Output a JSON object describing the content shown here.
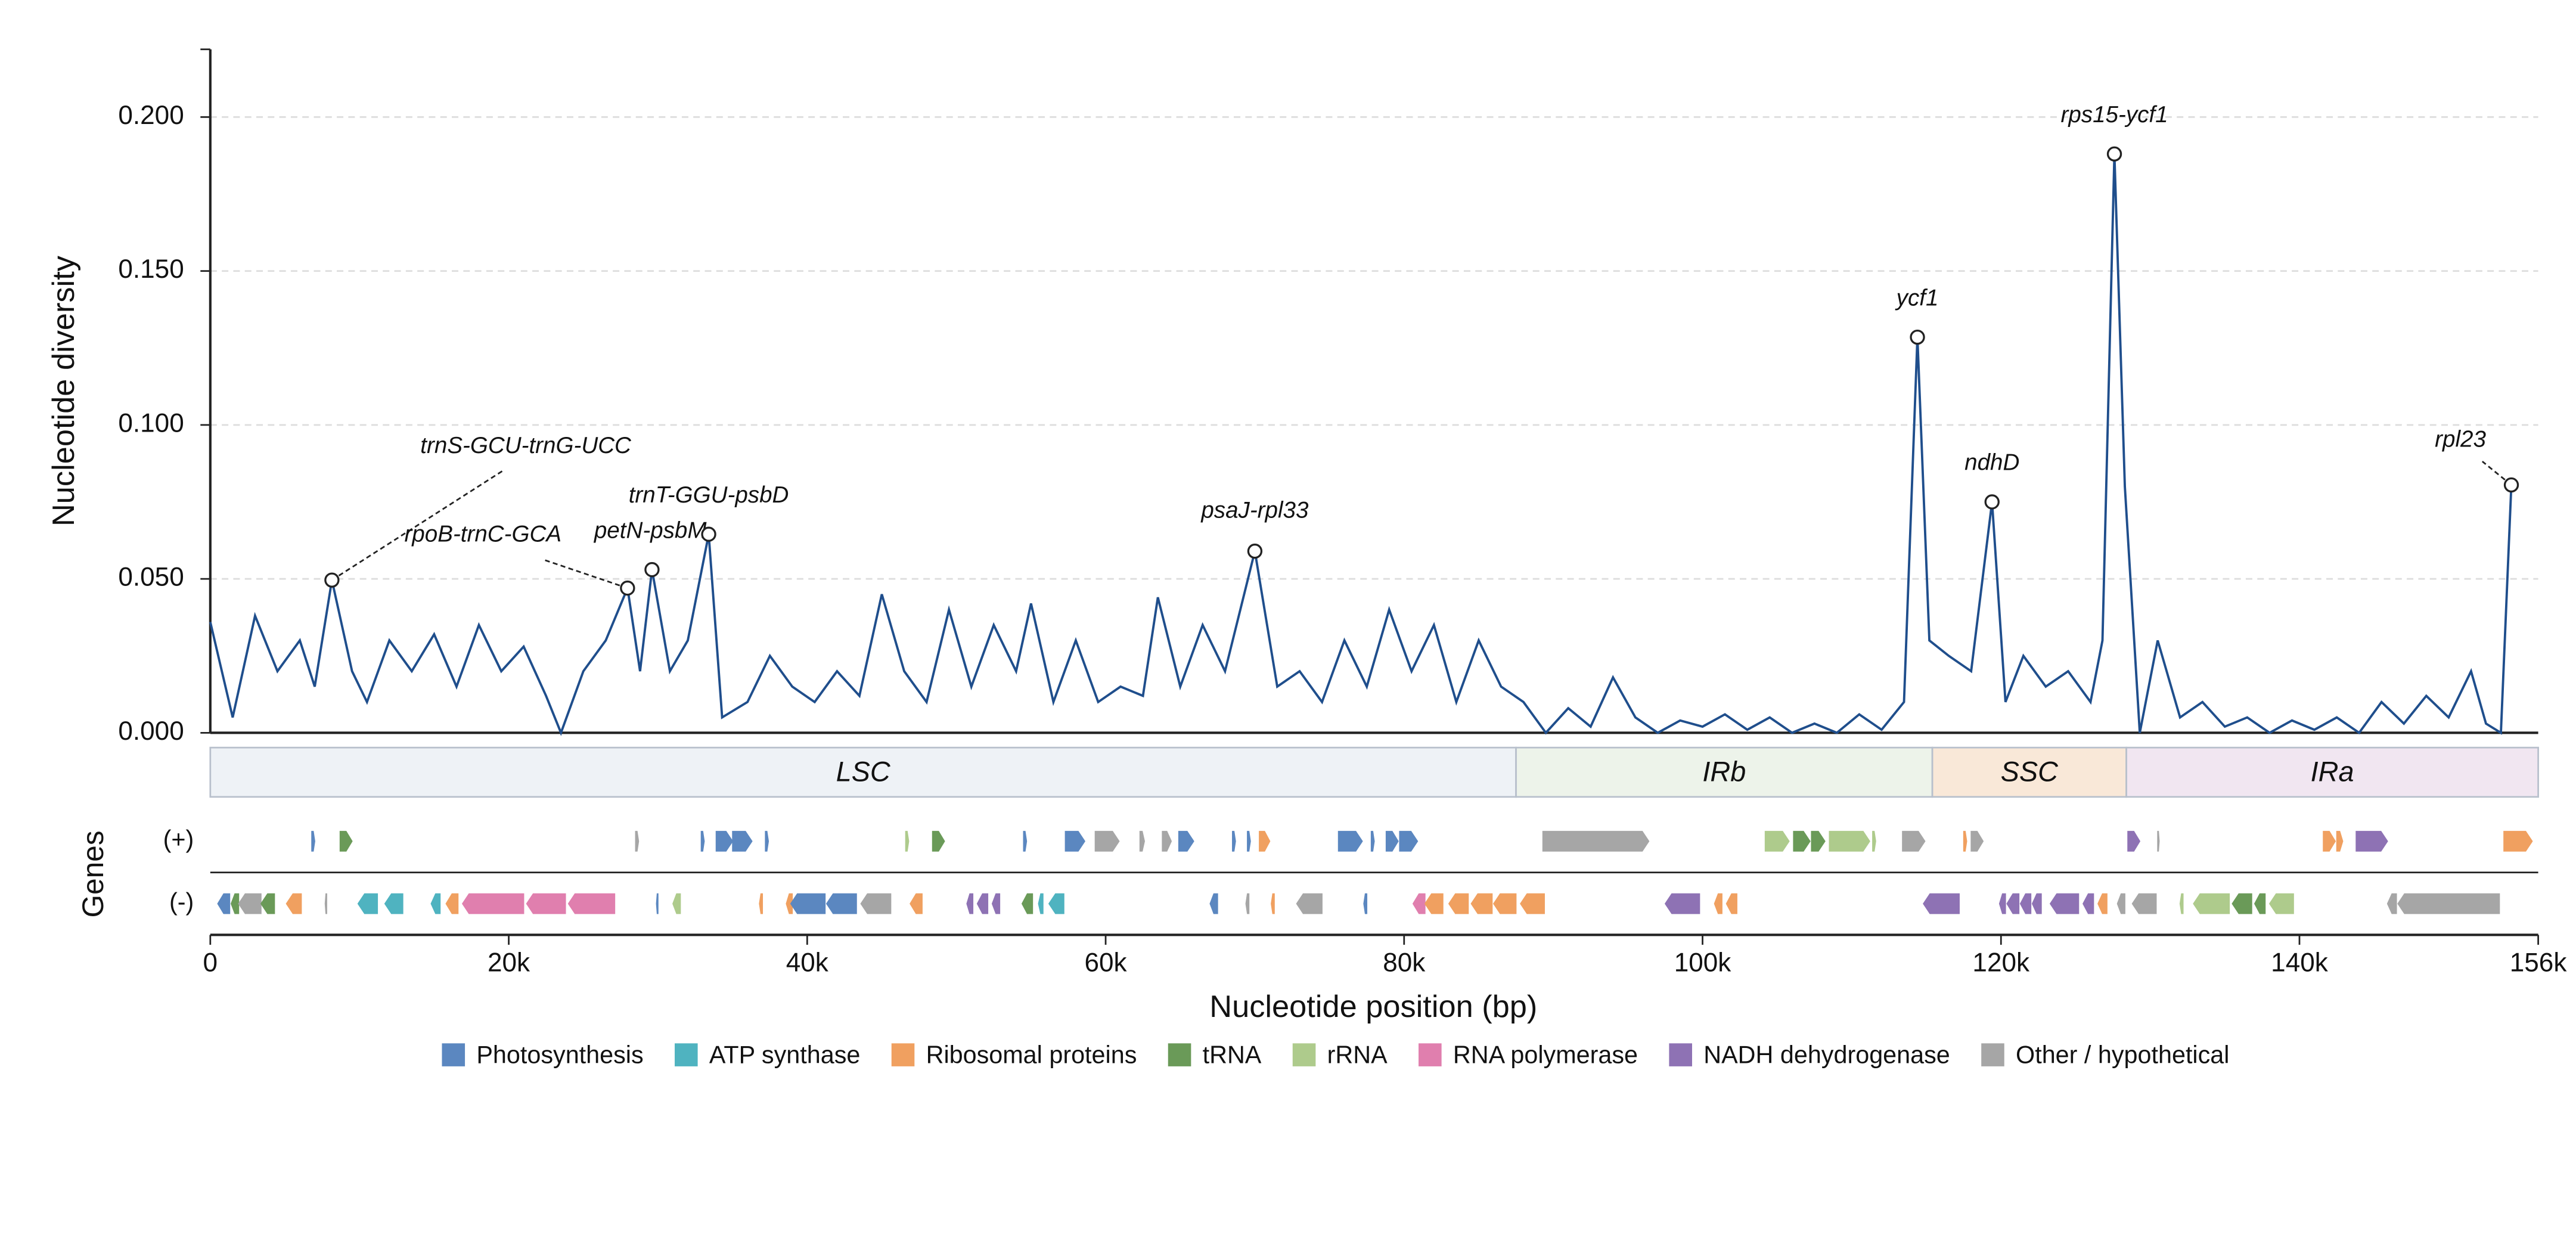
{
  "chart_data": {
    "type": "line",
    "ylabel": "Nucleotide diversity",
    "xlabel": "Nucleotide position (bp)",
    "genes_label": "Genes",
    "line_color": "#1f4e8c",
    "grid": true,
    "xlim": [
      0,
      156000
    ],
    "ylim": [
      0,
      0.222
    ],
    "yticks": [
      {
        "value": 0,
        "label": "0.000"
      },
      {
        "value": 0.05,
        "label": "0.050"
      },
      {
        "value": 0.1,
        "label": "0.100"
      },
      {
        "value": 0.15,
        "label": "0.150"
      },
      {
        "value": 0.2,
        "label": "0.200"
      }
    ],
    "xticks": [
      0,
      {
        "value": 20000,
        "label": "20k"
      },
      {
        "value": 40000,
        "label": "40k"
      },
      {
        "value": 60000,
        "label": "60k"
      },
      {
        "value": 80000,
        "label": "80k"
      },
      {
        "value": 100000,
        "label": "100k"
      },
      {
        "value": 120000,
        "label": "120k"
      },
      {
        "value": 140000,
        "label": "140k"
      },
      {
        "value": 156000,
        "label": "156k"
      }
    ],
    "x": [
      0,
      1500,
      3000,
      4500,
      6000,
      7000,
      8150,
      9500,
      10500,
      12000,
      13500,
      15000,
      16500,
      18000,
      19500,
      21000,
      22500,
      23500,
      25000,
      26500,
      27960,
      28800,
      29600,
      30800,
      32000,
      33400,
      34300,
      36000,
      37500,
      39000,
      40500,
      42000,
      43500,
      45000,
      46500,
      48000,
      49500,
      51000,
      52500,
      54000,
      55000,
      56500,
      58000,
      59500,
      61000,
      62500,
      63500,
      65000,
      66500,
      68000,
      70000,
      71500,
      73000,
      74500,
      76000,
      77500,
      79000,
      80500,
      82000,
      83500,
      85000,
      86500,
      88000,
      89500,
      91000,
      92500,
      94000,
      95500,
      97000,
      98500,
      100000,
      101500,
      103000,
      104500,
      106000,
      107500,
      109000,
      110500,
      112000,
      113500,
      114400,
      115200,
      116500,
      118000,
      119400,
      120300,
      121500,
      123000,
      124500,
      126000,
      126800,
      127600,
      128300,
      129300,
      130500,
      132000,
      133500,
      135000,
      136500,
      138000,
      139500,
      141000,
      142500,
      144000,
      145500,
      147000,
      148500,
      150000,
      151500,
      152500,
      153500,
      154200
    ],
    "values": [
      0.036,
      0.005,
      0.038,
      0.02,
      0.03,
      0.015,
      0.0496,
      0.02,
      0.01,
      0.03,
      0.02,
      0.032,
      0.015,
      0.035,
      0.02,
      0.028,
      0.012,
      0.0,
      0.02,
      0.03,
      0.047,
      0.02,
      0.053,
      0.02,
      0.03,
      0.0645,
      0.005,
      0.01,
      0.025,
      0.015,
      0.01,
      0.02,
      0.012,
      0.045,
      0.02,
      0.01,
      0.04,
      0.015,
      0.035,
      0.02,
      0.042,
      0.01,
      0.03,
      0.01,
      0.015,
      0.012,
      0.044,
      0.015,
      0.035,
      0.02,
      0.059,
      0.015,
      0.02,
      0.01,
      0.03,
      0.015,
      0.04,
      0.02,
      0.035,
      0.01,
      0.03,
      0.015,
      0.01,
      0.0,
      0.008,
      0.002,
      0.018,
      0.005,
      0.0,
      0.004,
      0.002,
      0.006,
      0.001,
      0.005,
      0.0,
      0.003,
      0.0,
      0.006,
      0.001,
      0.01,
      0.1285,
      0.03,
      0.025,
      0.02,
      0.075,
      0.01,
      0.025,
      0.015,
      0.02,
      0.01,
      0.03,
      0.188,
      0.08,
      0.0,
      0.03,
      0.005,
      0.01,
      0.002,
      0.005,
      0.0,
      0.004,
      0.001,
      0.005,
      0.0,
      0.01,
      0.003,
      0.012,
      0.005,
      0.02,
      0.003,
      0.0,
      0.0805
    ],
    "annotations": [
      {
        "label": "trnS-GCU-trnG-UCC",
        "x": 8150,
        "y": 0.0496
      },
      {
        "label": "rpoB-trnC-GCA",
        "x": 27960,
        "y": 0.047
      },
      {
        "label": "petN-psbM",
        "x": 29600,
        "y": 0.053
      },
      {
        "label": "trnT-GGU-psbD",
        "x": 33400,
        "y": 0.0645
      },
      {
        "label": "psaJ-rpl33",
        "x": 70000,
        "y": 0.059
      },
      {
        "label": "ycf1",
        "x": 114400,
        "y": 0.1285
      },
      {
        "label": "ndhD",
        "x": 119400,
        "y": 0.075
      },
      {
        "label": "rps15-ycf1",
        "x": 127600,
        "y": 0.188
      },
      {
        "label": "rpl23",
        "x": 154200,
        "y": 0.0805
      }
    ],
    "regions": [
      {
        "label": "LSC",
        "start": 0,
        "end": 87500,
        "color": "#eef2f6"
      },
      {
        "label": "IRb",
        "start": 87500,
        "end": 115400,
        "color": "#edf3ea"
      },
      {
        "label": "SSC",
        "start": 115400,
        "end": 128400,
        "color": "#f9e8d8"
      },
      {
        "label": "IRa",
        "start": 128400,
        "end": 156000,
        "color": "#f1e6f1"
      }
    ],
    "track_labels": [
      "(+)",
      "(-)"
    ],
    "categories": [
      {
        "name": "Photosynthesis",
        "color": "#5b87c0"
      },
      {
        "name": "ATP synthase",
        "color": "#4fb3c0"
      },
      {
        "name": "Ribosomal proteins",
        "color": "#f0a060"
      },
      {
        "name": "tRNA",
        "color": "#6a9a58"
      },
      {
        "name": "rRNA",
        "color": "#aecb8c"
      },
      {
        "name": "RNA polymerase",
        "color": "#e07fae"
      },
      {
        "name": "NADH dehydrogenase",
        "color": "#8e72b4"
      },
      {
        "name": "Other / hypothetical",
        "color": "#a6a6a6"
      }
    ],
    "genes": [
      [
        6800,
        7000,
        0,
        0
      ],
      [
        8700,
        9500,
        0,
        3
      ],
      [
        28500,
        28700,
        0,
        7
      ],
      [
        32900,
        33100,
        0,
        0
      ],
      [
        33900,
        35000,
        0,
        0
      ],
      [
        35000,
        36300,
        0,
        0
      ],
      [
        37200,
        37400,
        0,
        0
      ],
      [
        46600,
        46800,
        0,
        4
      ],
      [
        48400,
        49200,
        0,
        3
      ],
      [
        54500,
        54700,
        0,
        0
      ],
      [
        57300,
        58600,
        0,
        0
      ],
      [
        59300,
        60900,
        0,
        7
      ],
      [
        62300,
        62600,
        0,
        7
      ],
      [
        63800,
        64400,
        0,
        7
      ],
      [
        64900,
        65900,
        0,
        0
      ],
      [
        68500,
        68700,
        0,
        0
      ],
      [
        69500,
        69700,
        0,
        0
      ],
      [
        70300,
        71000,
        0,
        2
      ],
      [
        75600,
        77200,
        0,
        0
      ],
      [
        77800,
        78000,
        0,
        0
      ],
      [
        78800,
        79600,
        0,
        0
      ],
      [
        79700,
        80900,
        0,
        0
      ],
      [
        89300,
        96400,
        0,
        7
      ],
      [
        104200,
        105800,
        0,
        4
      ],
      [
        106100,
        107200,
        0,
        3
      ],
      [
        107300,
        108200,
        0,
        3
      ],
      [
        108500,
        111200,
        0,
        4
      ],
      [
        111400,
        111600,
        0,
        4
      ],
      [
        113400,
        114900,
        0,
        7
      ],
      [
        117500,
        117700,
        0,
        2
      ],
      [
        118000,
        118800,
        0,
        7
      ],
      [
        128500,
        129300,
        0,
        6
      ],
      [
        130500,
        130600,
        0,
        7
      ],
      [
        141600,
        142400,
        0,
        2
      ],
      [
        142500,
        142900,
        0,
        2
      ],
      [
        143800,
        145900,
        0,
        6
      ],
      [
        153700,
        155600,
        0,
        2
      ],
      [
        500,
        1300,
        1,
        0
      ],
      [
        1400,
        1900,
        1,
        3
      ],
      [
        1900,
        3400,
        1,
        7
      ],
      [
        3400,
        4300,
        1,
        3
      ],
      [
        5100,
        6100,
        1,
        2
      ],
      [
        7700,
        7800,
        1,
        7
      ],
      [
        9900,
        11200,
        1,
        1
      ],
      [
        11700,
        12900,
        1,
        1
      ],
      [
        14800,
        15400,
        1,
        1
      ],
      [
        15800,
        16600,
        1,
        2
      ],
      [
        16900,
        21000,
        1,
        5
      ],
      [
        21200,
        23800,
        1,
        5
      ],
      [
        24000,
        27100,
        1,
        5
      ],
      [
        29900,
        30000,
        1,
        0
      ],
      [
        31000,
        31500,
        1,
        4
      ],
      [
        36800,
        37000,
        1,
        2
      ],
      [
        38600,
        39000,
        1,
        2
      ],
      [
        38900,
        41200,
        1,
        0
      ],
      [
        41300,
        43300,
        1,
        0
      ],
      [
        43600,
        45600,
        1,
        7
      ],
      [
        46900,
        47700,
        1,
        2
      ],
      [
        50700,
        51100,
        1,
        6
      ],
      [
        51400,
        52100,
        1,
        6
      ],
      [
        52400,
        52900,
        1,
        6
      ],
      [
        54400,
        55100,
        1,
        3
      ],
      [
        55500,
        55800,
        1,
        1
      ],
      [
        56200,
        57200,
        1,
        1
      ],
      [
        67000,
        67500,
        1,
        0
      ],
      [
        69400,
        69600,
        1,
        7
      ],
      [
        71100,
        71300,
        1,
        2
      ],
      [
        72800,
        74500,
        1,
        7
      ],
      [
        77300,
        77500,
        1,
        0
      ],
      [
        80600,
        81400,
        1,
        5
      ],
      [
        81400,
        82600,
        1,
        2
      ],
      [
        83000,
        84300,
        1,
        2
      ],
      [
        84500,
        85900,
        1,
        2
      ],
      [
        86000,
        87500,
        1,
        2
      ],
      [
        87800,
        89400,
        1,
        2
      ],
      [
        97500,
        99800,
        1,
        6
      ],
      [
        100800,
        101300,
        1,
        2
      ],
      [
        101600,
        102300,
        1,
        2
      ],
      [
        114800,
        117200,
        1,
        6
      ],
      [
        119900,
        120300,
        1,
        6
      ],
      [
        120400,
        121200,
        1,
        6
      ],
      [
        121300,
        122000,
        1,
        6
      ],
      [
        122100,
        122700,
        1,
        6
      ],
      [
        123300,
        125200,
        1,
        6
      ],
      [
        125500,
        126200,
        1,
        6
      ],
      [
        126500,
        127100,
        1,
        2
      ],
      [
        127800,
        128300,
        1,
        7
      ],
      [
        128800,
        130400,
        1,
        7
      ],
      [
        132000,
        132200,
        1,
        4
      ],
      [
        132900,
        135300,
        1,
        4
      ],
      [
        135500,
        136800,
        1,
        3
      ],
      [
        137000,
        137700,
        1,
        3
      ],
      [
        138000,
        139600,
        1,
        4
      ],
      [
        145900,
        146500,
        1,
        7
      ],
      [
        146600,
        153400,
        1,
        7
      ]
    ]
  }
}
